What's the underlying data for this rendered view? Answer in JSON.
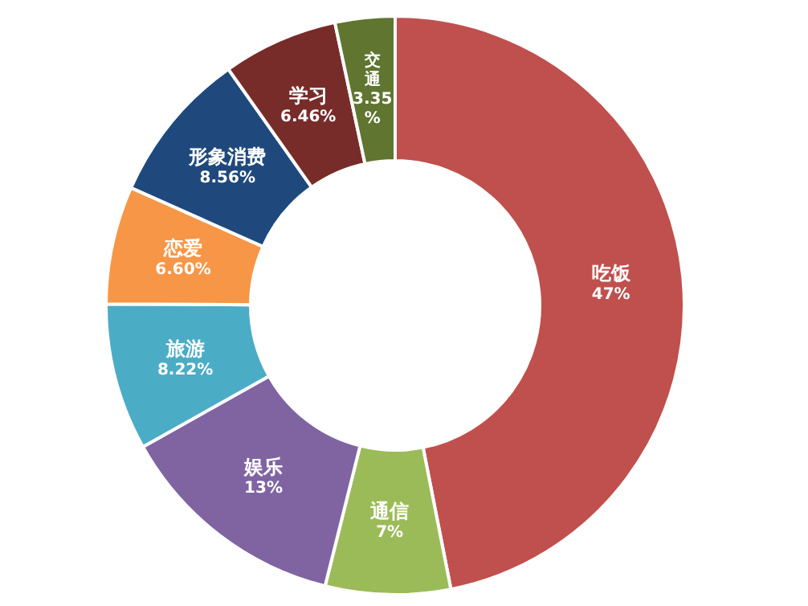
{
  "chart_data": {
    "type": "donut",
    "categories": [
      "吃饭",
      "通信",
      "娱乐",
      "旅游",
      "恋爱",
      "形象消费",
      "学习",
      "交通"
    ],
    "values": [
      47,
      7,
      13,
      8.22,
      6.6,
      8.56,
      6.46,
      3.35
    ],
    "value_labels": [
      "47%",
      "7%",
      "13%",
      "8.22%",
      "6.60%",
      "8.56%",
      "6.46%",
      "3.35%"
    ],
    "colors": [
      "#c0504d",
      "#9bbb59",
      "#8064a2",
      "#4bacc6",
      "#f79646",
      "#1f497d",
      "#772c2a",
      "#5f7530"
    ]
  }
}
